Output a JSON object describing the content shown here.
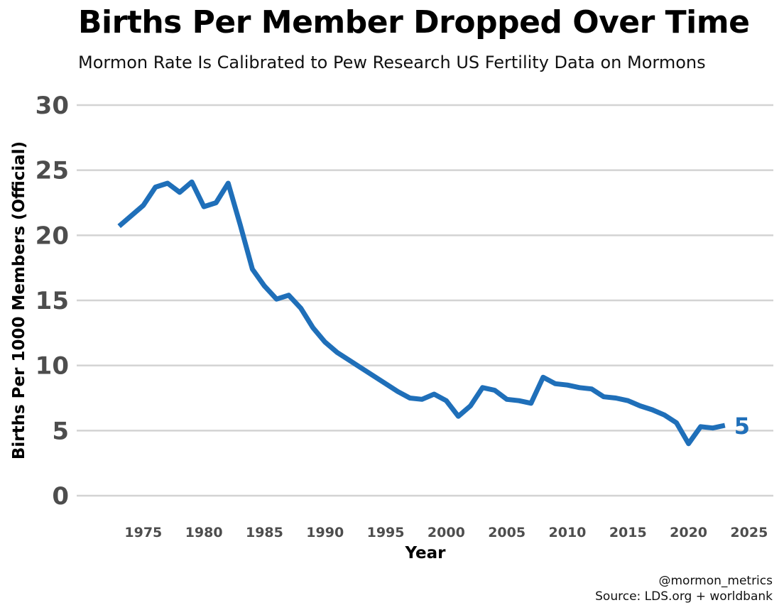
{
  "title": "Births Per Member Dropped Over Time",
  "subtitle": "Mormon Rate Is Calibrated to Pew Research US Fertility Data on Mormons",
  "caption": {
    "handle": "@mormon_metrics",
    "source": "Source: LDS.org + worldbank"
  },
  "colors": {
    "line": "#1f6fb9",
    "grid": "#d3d3d3",
    "tick": "#4d4d4d"
  },
  "chart_data": {
    "type": "line",
    "title": "Births Per Member Dropped Over Time",
    "subtitle": "Mormon Rate Is Calibrated to Pew Research US Fertility Data on Mormons",
    "xlabel": "Year",
    "ylabel": "Births Per 1000 Members (Official)",
    "xlim": [
      1969.5,
      2027
    ],
    "ylim": [
      0,
      30
    ],
    "x_ticks": [
      1975,
      1980,
      1985,
      1990,
      1995,
      2000,
      2005,
      2010,
      2015,
      2020,
      2025
    ],
    "y_ticks": [
      0,
      5,
      10,
      15,
      20,
      25,
      30
    ],
    "grid": "horizontal",
    "legend": "none",
    "end_label": "5",
    "series": [
      {
        "x": [
          1973,
          1974,
          1975,
          1976,
          1977,
          1978,
          1979,
          1980,
          1981,
          1982,
          1983,
          1984,
          1985,
          1986,
          1987,
          1988,
          1989,
          1990,
          1991,
          1992,
          1993,
          1994,
          1995,
          1996,
          1997,
          1998,
          1999,
          2000,
          2001,
          2002,
          2003,
          2004,
          2005,
          2006,
          2007,
          2008,
          2009,
          2010,
          2011,
          2012,
          2013,
          2014,
          2015,
          2016,
          2017,
          2018,
          2019,
          2020,
          2021,
          2022,
          2023
        ],
        "y": [
          20.7,
          21.5,
          22.3,
          23.7,
          24.0,
          23.3,
          24.1,
          22.2,
          22.5,
          24.0,
          20.8,
          17.4,
          16.1,
          15.1,
          15.4,
          14.4,
          12.9,
          11.8,
          11.0,
          10.4,
          9.8,
          9.2,
          8.6,
          8.0,
          7.5,
          7.4,
          7.8,
          7.3,
          6.1,
          6.9,
          8.3,
          8.1,
          7.4,
          7.3,
          7.1,
          9.1,
          8.6,
          8.5,
          8.3,
          8.2,
          7.6,
          7.5,
          7.3,
          6.9,
          6.6,
          6.2,
          5.6,
          4.0,
          5.3,
          5.2,
          5.4
        ]
      }
    ]
  }
}
